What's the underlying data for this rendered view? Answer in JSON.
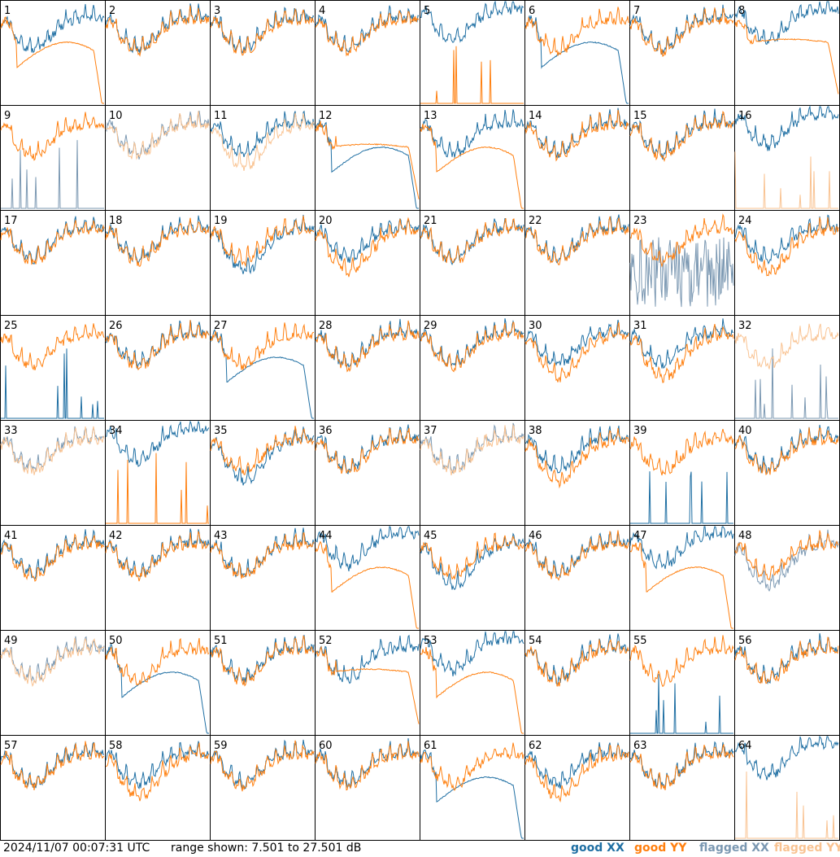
{
  "chart_data": {
    "type": "line",
    "layout": "small-multiples 8x8",
    "timestamp": "2024/11/07 00:07:31 UTC",
    "range_text": "range shown: 7.501 to 27.501 dB",
    "ylim": [
      7.501,
      27.501
    ],
    "legend": {
      "placement": "bottom-right",
      "entries": [
        {
          "label": "good XX",
          "color": "#1f6fa3"
        },
        {
          "label": "good YY",
          "color": "#ff7f0e"
        },
        {
          "label": "flagged XX",
          "color": "#7b98b2"
        },
        {
          "label": "flagged YY",
          "color": "#f9c392"
        }
      ]
    },
    "tiles": [
      {
        "label": "1",
        "xx": "good",
        "yy": "good",
        "xx_shape": "normal",
        "yy_shape": "dropout"
      },
      {
        "label": "2",
        "xx": "good",
        "yy": "good",
        "xx_shape": "normal",
        "yy_shape": "normal"
      },
      {
        "label": "3",
        "xx": "good",
        "yy": "good",
        "xx_shape": "normal",
        "yy_shape": "normal"
      },
      {
        "label": "4",
        "xx": "good",
        "yy": "good",
        "xx_shape": "normal",
        "yy_shape": "normal"
      },
      {
        "label": "5",
        "xx": "good",
        "yy": "good",
        "xx_shape": "high",
        "yy_shape": "spikes"
      },
      {
        "label": "6",
        "xx": "good",
        "yy": "good",
        "xx_shape": "dropout",
        "yy_shape": "normal"
      },
      {
        "label": "7",
        "xx": "good",
        "yy": "good",
        "xx_shape": "normal",
        "yy_shape": "normal"
      },
      {
        "label": "8",
        "xx": "good",
        "yy": "good",
        "xx_shape": "high",
        "yy_shape": "flatten"
      },
      {
        "label": "9",
        "xx": "flagged",
        "yy": "good",
        "xx_shape": "spikes",
        "yy_shape": "normal"
      },
      {
        "label": "10",
        "xx": "flagged",
        "yy": "flagged",
        "xx_shape": "normal",
        "yy_shape": "normal"
      },
      {
        "label": "11",
        "xx": "good",
        "yy": "flagged",
        "xx_shape": "normal",
        "yy_shape": "low"
      },
      {
        "label": "12",
        "xx": "good",
        "yy": "good",
        "xx_shape": "dropout",
        "yy_shape": "flatten"
      },
      {
        "label": "13",
        "xx": "good",
        "yy": "good",
        "xx_shape": "normal",
        "yy_shape": "dropout"
      },
      {
        "label": "14",
        "xx": "good",
        "yy": "good",
        "xx_shape": "normal",
        "yy_shape": "normal"
      },
      {
        "label": "15",
        "xx": "good",
        "yy": "good",
        "xx_shape": "normal",
        "yy_shape": "normal"
      },
      {
        "label": "16",
        "xx": "good",
        "yy": "flagged",
        "xx_shape": "high",
        "yy_shape": "spikes"
      },
      {
        "label": "17",
        "xx": "good",
        "yy": "good",
        "xx_shape": "normal",
        "yy_shape": "normal"
      },
      {
        "label": "18",
        "xx": "good",
        "yy": "good",
        "xx_shape": "normal",
        "yy_shape": "normal"
      },
      {
        "label": "19",
        "xx": "good",
        "yy": "good",
        "xx_shape": "low",
        "yy_shape": "normal"
      },
      {
        "label": "20",
        "xx": "good",
        "yy": "good",
        "xx_shape": "normal",
        "yy_shape": "low"
      },
      {
        "label": "21",
        "xx": "good",
        "yy": "good",
        "xx_shape": "normal",
        "yy_shape": "normal"
      },
      {
        "label": "22",
        "xx": "good",
        "yy": "good",
        "xx_shape": "normal",
        "yy_shape": "normal"
      },
      {
        "label": "23",
        "xx": "flagged",
        "yy": "good",
        "xx_shape": "noisy",
        "yy_shape": "normal"
      },
      {
        "label": "24",
        "xx": "good",
        "yy": "good",
        "xx_shape": "normal",
        "yy_shape": "low"
      },
      {
        "label": "25",
        "xx": "good",
        "yy": "good",
        "xx_shape": "spikes",
        "yy_shape": "normal"
      },
      {
        "label": "26",
        "xx": "good",
        "yy": "good",
        "xx_shape": "normal",
        "yy_shape": "normal"
      },
      {
        "label": "27",
        "xx": "good",
        "yy": "good",
        "xx_shape": "dropout",
        "yy_shape": "normal"
      },
      {
        "label": "28",
        "xx": "good",
        "yy": "good",
        "xx_shape": "normal",
        "yy_shape": "normal"
      },
      {
        "label": "29",
        "xx": "good",
        "yy": "good",
        "xx_shape": "normal",
        "yy_shape": "normal"
      },
      {
        "label": "30",
        "xx": "good",
        "yy": "good",
        "xx_shape": "normal",
        "yy_shape": "low"
      },
      {
        "label": "31",
        "xx": "good",
        "yy": "good",
        "xx_shape": "normal",
        "yy_shape": "low"
      },
      {
        "label": "32",
        "xx": "flagged",
        "yy": "flagged",
        "xx_shape": "spikes",
        "yy_shape": "normal"
      },
      {
        "label": "33",
        "xx": "flagged",
        "yy": "flagged",
        "xx_shape": "normal",
        "yy_shape": "normal"
      },
      {
        "label": "34",
        "xx": "good",
        "yy": "good",
        "xx_shape": "high",
        "yy_shape": "spikes"
      },
      {
        "label": "35",
        "xx": "good",
        "yy": "good",
        "xx_shape": "low",
        "yy_shape": "normal"
      },
      {
        "label": "36",
        "xx": "good",
        "yy": "good",
        "xx_shape": "normal",
        "yy_shape": "normal"
      },
      {
        "label": "37",
        "xx": "flagged",
        "yy": "flagged",
        "xx_shape": "normal",
        "yy_shape": "normal"
      },
      {
        "label": "38",
        "xx": "good",
        "yy": "good",
        "xx_shape": "normal",
        "yy_shape": "low"
      },
      {
        "label": "39",
        "xx": "good",
        "yy": "good",
        "xx_shape": "spikes",
        "yy_shape": "normal"
      },
      {
        "label": "40",
        "xx": "good",
        "yy": "good",
        "xx_shape": "normal",
        "yy_shape": "normal"
      },
      {
        "label": "41",
        "xx": "good",
        "yy": "good",
        "xx_shape": "normal",
        "yy_shape": "normal"
      },
      {
        "label": "42",
        "xx": "good",
        "yy": "good",
        "xx_shape": "normal",
        "yy_shape": "normal"
      },
      {
        "label": "43",
        "xx": "good",
        "yy": "good",
        "xx_shape": "normal",
        "yy_shape": "normal"
      },
      {
        "label": "44",
        "xx": "good",
        "yy": "good",
        "xx_shape": "high",
        "yy_shape": "dropout"
      },
      {
        "label": "45",
        "xx": "good",
        "yy": "good",
        "xx_shape": "low",
        "yy_shape": "normal"
      },
      {
        "label": "46",
        "xx": "good",
        "yy": "good",
        "xx_shape": "normal",
        "yy_shape": "normal"
      },
      {
        "label": "47",
        "xx": "good",
        "yy": "good",
        "xx_shape": "high",
        "yy_shape": "dropout"
      },
      {
        "label": "48",
        "xx": "flagged",
        "yy": "good",
        "xx_shape": "low",
        "yy_shape": "normal"
      },
      {
        "label": "49",
        "xx": "flagged",
        "yy": "flagged",
        "xx_shape": "normal",
        "yy_shape": "normal"
      },
      {
        "label": "50",
        "xx": "good",
        "yy": "good",
        "xx_shape": "dropout",
        "yy_shape": "normal"
      },
      {
        "label": "51",
        "xx": "good",
        "yy": "good",
        "xx_shape": "normal",
        "yy_shape": "normal"
      },
      {
        "label": "52",
        "xx": "good",
        "yy": "good",
        "xx_shape": "normal",
        "yy_shape": "flatten"
      },
      {
        "label": "53",
        "xx": "good",
        "yy": "good",
        "xx_shape": "high",
        "yy_shape": "dropout"
      },
      {
        "label": "54",
        "xx": "good",
        "yy": "good",
        "xx_shape": "normal",
        "yy_shape": "normal"
      },
      {
        "label": "55",
        "xx": "good",
        "yy": "good",
        "xx_shape": "spikes",
        "yy_shape": "normal"
      },
      {
        "label": "56",
        "xx": "good",
        "yy": "good",
        "xx_shape": "normal",
        "yy_shape": "normal"
      },
      {
        "label": "57",
        "xx": "good",
        "yy": "good",
        "xx_shape": "normal",
        "yy_shape": "normal"
      },
      {
        "label": "58",
        "xx": "good",
        "yy": "good",
        "xx_shape": "normal",
        "yy_shape": "low"
      },
      {
        "label": "59",
        "xx": "good",
        "yy": "good",
        "xx_shape": "normal",
        "yy_shape": "normal"
      },
      {
        "label": "60",
        "xx": "good",
        "yy": "good",
        "xx_shape": "normal",
        "yy_shape": "normal"
      },
      {
        "label": "61",
        "xx": "good",
        "yy": "good",
        "xx_shape": "dropout",
        "yy_shape": "normal"
      },
      {
        "label": "62",
        "xx": "good",
        "yy": "good",
        "xx_shape": "normal",
        "yy_shape": "low"
      },
      {
        "label": "63",
        "xx": "good",
        "yy": "good",
        "xx_shape": "normal",
        "yy_shape": "normal"
      },
      {
        "label": "64",
        "xx": "good",
        "yy": "flagged",
        "xx_shape": "high",
        "yy_shape": "spikes"
      }
    ]
  }
}
